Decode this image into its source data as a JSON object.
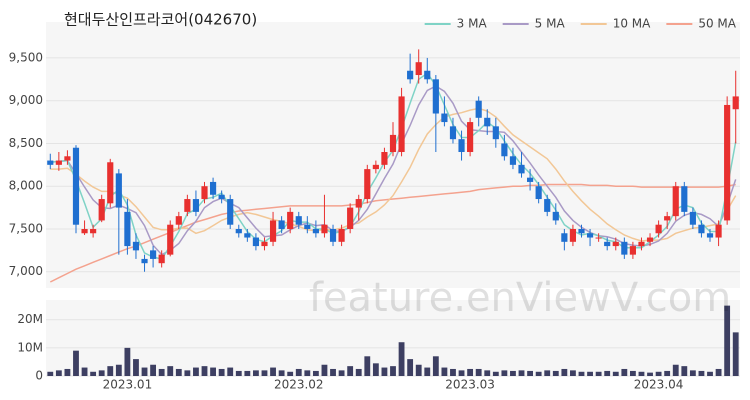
{
  "chart_data": [
    {
      "type": "candlestick",
      "title": "현대두산인프라코어(042670)",
      "watermark": "feature.enViewV.com",
      "open": [
        8300,
        8250,
        8300,
        8450,
        7450,
        7450,
        7600,
        7800,
        8150,
        7700,
        7350,
        7150,
        7250,
        7100,
        7200,
        7550,
        7700,
        7850,
        7850,
        8050,
        7900,
        7850,
        7500,
        7450,
        7400,
        7300,
        7350,
        7600,
        7500,
        7650,
        7550,
        7500,
        7450,
        7500,
        7350,
        7500,
        7750,
        7850,
        8200,
        8250,
        8400,
        8400,
        9350,
        9300,
        9350,
        9250,
        8850,
        8700,
        8550,
        8400,
        9000,
        8800,
        8700,
        8500,
        8350,
        8250,
        8100,
        8000,
        7850,
        7700,
        7450,
        7350,
        7500,
        7450,
        7400,
        7350,
        7300,
        7350,
        7200,
        7300,
        7350,
        7450,
        7600,
        7650,
        8000,
        7700,
        7550,
        7450,
        7400,
        7600,
        8900
      ],
      "high": [
        8380,
        8400,
        8420,
        8480,
        7600,
        7550,
        7900,
        8320,
        8200,
        7850,
        7450,
        7200,
        7300,
        7250,
        7600,
        7700,
        7900,
        7950,
        8050,
        8100,
        7950,
        7900,
        7550,
        7500,
        7450,
        7400,
        7700,
        7650,
        7750,
        7700,
        7650,
        7600,
        7900,
        7550,
        7550,
        7800,
        7900,
        8250,
        8300,
        8450,
        8750,
        9150,
        9550,
        9600,
        9500,
        9300,
        9050,
        8800,
        8650,
        8800,
        9050,
        8900,
        8800,
        8600,
        8450,
        8400,
        8200,
        8050,
        7900,
        7800,
        7500,
        7550,
        7550,
        7500,
        7450,
        7400,
        7400,
        7400,
        7350,
        7400,
        7450,
        7600,
        7700,
        8050,
        8050,
        7750,
        7600,
        7500,
        7600,
        9050,
        9350
      ],
      "low": [
        8200,
        8180,
        8250,
        7450,
        7430,
        7400,
        7580,
        7750,
        7200,
        7200,
        7150,
        7000,
        7050,
        7050,
        7180,
        7500,
        7650,
        7650,
        7800,
        7850,
        7800,
        7500,
        7400,
        7350,
        7250,
        7250,
        7300,
        7450,
        7450,
        7500,
        7450,
        7400,
        7400,
        7300,
        7300,
        7450,
        7600,
        7800,
        8150,
        8200,
        8350,
        8350,
        9200,
        9200,
        9200,
        8400,
        8700,
        8500,
        8300,
        8350,
        8700,
        8600,
        8450,
        8300,
        8200,
        8100,
        7950,
        7800,
        7650,
        7550,
        7250,
        7300,
        7400,
        7300,
        7350,
        7250,
        7250,
        7150,
        7150,
        7250,
        7300,
        7400,
        7500,
        7600,
        7650,
        7500,
        7400,
        7350,
        7300,
        7550,
        8500
      ],
      "close": [
        8250,
        8300,
        8350,
        7550,
        7500,
        7500,
        7850,
        8280,
        7750,
        7300,
        7250,
        7100,
        7150,
        7200,
        7550,
        7650,
        7850,
        7700,
        8000,
        7900,
        7850,
        7550,
        7450,
        7400,
        7300,
        7350,
        7600,
        7500,
        7700,
        7550,
        7500,
        7450,
        7550,
        7350,
        7500,
        7750,
        7850,
        8200,
        8250,
        8400,
        8600,
        9050,
        9250,
        9450,
        9250,
        8850,
        8750,
        8550,
        8400,
        8750,
        8800,
        8700,
        8550,
        8350,
        8250,
        8150,
        8050,
        7850,
        7700,
        7600,
        7350,
        7500,
        7450,
        7400,
        7400,
        7300,
        7350,
        7200,
        7300,
        7350,
        7400,
        7550,
        7650,
        8000,
        7700,
        7550,
        7450,
        7400,
        7550,
        8950,
        9050
      ],
      "up_color": "#e8302f",
      "down_color": "#1f6fd0",
      "lines": [
        {
          "name": "3 MA",
          "color": "#7fd3c6",
          "values": [
            8280,
            8290,
            8300,
            8070,
            7800,
            7520,
            7620,
            7880,
            7960,
            7780,
            7430,
            7220,
            7170,
            7150,
            7300,
            7470,
            7680,
            7730,
            7850,
            7870,
            7920,
            7770,
            7620,
            7470,
            7380,
            7350,
            7420,
            7480,
            7600,
            7580,
            7580,
            7500,
            7500,
            7450,
            7470,
            7530,
            7700,
            7930,
            8100,
            8280,
            8420,
            8680,
            8970,
            9250,
            9320,
            9180,
            8950,
            8720,
            8570,
            8570,
            8650,
            8750,
            8680,
            8530,
            8380,
            8250,
            8150,
            8020,
            7870,
            7720,
            7550,
            7480,
            7430,
            7450,
            7420,
            7370,
            7350,
            7280,
            7280,
            7280,
            7350,
            7430,
            7530,
            7730,
            7780,
            7750,
            7570,
            7470,
            7470,
            7970,
            8520
          ]
        },
        {
          "name": "5 MA",
          "color": "#a99ac6",
          "values": [
            8280,
            8290,
            8300,
            8150,
            7990,
            7840,
            7750,
            7740,
            7780,
            7740,
            7690,
            7540,
            7310,
            7200,
            7250,
            7330,
            7480,
            7590,
            7750,
            7820,
            7860,
            7800,
            7750,
            7630,
            7510,
            7410,
            7420,
            7430,
            7490,
            7540,
            7570,
            7540,
            7550,
            7480,
            7470,
            7520,
            7600,
            7730,
            7910,
            8090,
            8260,
            8500,
            8710,
            8950,
            9120,
            9170,
            9110,
            8970,
            8760,
            8660,
            8650,
            8640,
            8640,
            8630,
            8530,
            8400,
            8270,
            8130,
            8000,
            7870,
            7710,
            7600,
            7520,
            7460,
            7420,
            7410,
            7380,
            7330,
            7310,
            7300,
            7320,
            7360,
            7450,
            7590,
            7660,
            7690,
            7670,
            7620,
            7530,
            7780,
            8080
          ]
        },
        {
          "name": "10 MA",
          "color": "#f2c796",
          "values": [
            8200,
            8200,
            8210,
            8140,
            8060,
            7990,
            7940,
            7940,
            7900,
            7860,
            7760,
            7640,
            7520,
            7490,
            7490,
            7510,
            7510,
            7450,
            7480,
            7540,
            7600,
            7640,
            7670,
            7690,
            7670,
            7640,
            7610,
            7590,
            7560,
            7530,
            7490,
            7480,
            7490,
            7490,
            7510,
            7550,
            7570,
            7640,
            7700,
            7780,
            7890,
            8050,
            8220,
            8430,
            8610,
            8720,
            8810,
            8840,
            8860,
            8890,
            8910,
            8880,
            8810,
            8700,
            8600,
            8530,
            8460,
            8390,
            8320,
            8200,
            8060,
            7940,
            7830,
            7730,
            7650,
            7560,
            7490,
            7430,
            7390,
            7360,
            7370,
            7370,
            7390,
            7450,
            7480,
            7510,
            7520,
            7540,
            7560,
            7720,
            7890
          ]
        },
        {
          "name": "50 MA",
          "color": "#f4a28e",
          "values": [
            6880,
            6930,
            6980,
            7030,
            7070,
            7110,
            7150,
            7190,
            7230,
            7270,
            7300,
            7340,
            7380,
            7420,
            7460,
            7500,
            7540,
            7580,
            7610,
            7640,
            7670,
            7690,
            7710,
            7720,
            7730,
            7740,
            7750,
            7760,
            7770,
            7770,
            7770,
            7770,
            7770,
            7770,
            7770,
            7780,
            7790,
            7810,
            7830,
            7840,
            7850,
            7860,
            7870,
            7880,
            7890,
            7900,
            7910,
            7920,
            7930,
            7940,
            7960,
            7970,
            7980,
            7990,
            8000,
            8000,
            8010,
            8010,
            8020,
            8020,
            8020,
            8020,
            8020,
            8010,
            8010,
            8010,
            8000,
            8000,
            8000,
            7990,
            7990,
            7990,
            7990,
            7990,
            7990,
            7990,
            7990,
            7990,
            7990,
            8000,
            8020
          ]
        }
      ],
      "legend": "top-right",
      "grid": true,
      "ylim": [
        6810,
        9920
      ],
      "yticks": [
        {
          "value": 7000,
          "label": "7,000"
        },
        {
          "value": 7500,
          "label": "7,500"
        },
        {
          "value": 8000,
          "label": "8,000"
        },
        {
          "value": 8500,
          "label": "8,500"
        },
        {
          "value": 9000,
          "label": "9,000"
        },
        {
          "value": 9500,
          "label": "9,500"
        }
      ]
    },
    {
      "type": "bar",
      "color": "#3d3f62",
      "grid": true,
      "categories": [
        null,
        null,
        null,
        null,
        null,
        null,
        null,
        null,
        null,
        "2023.01",
        null,
        null,
        null,
        null,
        null,
        null,
        null,
        null,
        null,
        null,
        null,
        null,
        null,
        null,
        null,
        null,
        null,
        null,
        null,
        "2023.02",
        null,
        null,
        null,
        null,
        null,
        null,
        null,
        null,
        null,
        null,
        null,
        null,
        null,
        null,
        null,
        null,
        null,
        null,
        null,
        "2023.03",
        null,
        null,
        null,
        null,
        null,
        null,
        null,
        null,
        null,
        null,
        null,
        null,
        null,
        null,
        null,
        null,
        null,
        null,
        null,
        null,
        null,
        "2023.04",
        null,
        null,
        null,
        null,
        null,
        null,
        null,
        null,
        null
      ],
      "values": [
        1500000,
        2000000,
        2500000,
        9000000,
        3000000,
        1500000,
        2000000,
        3500000,
        4000000,
        10000000,
        6000000,
        3000000,
        4000000,
        2500000,
        3500000,
        2500000,
        2000000,
        3000000,
        3500000,
        3000000,
        2500000,
        3000000,
        1800000,
        1800000,
        2000000,
        2000000,
        3000000,
        2000000,
        1500000,
        2500000,
        2000000,
        1800000,
        4000000,
        2500000,
        2000000,
        3500000,
        2500000,
        7000000,
        4500000,
        3000000,
        3500000,
        12000000,
        6000000,
        4000000,
        3000000,
        7000000,
        3000000,
        2500000,
        2000000,
        2500000,
        2500000,
        2000000,
        1500000,
        2000000,
        1800000,
        2000000,
        1800000,
        1500000,
        2000000,
        1800000,
        2500000,
        2000000,
        1500000,
        1500000,
        1500000,
        1800000,
        1500000,
        2500000,
        1800000,
        1500000,
        1200000,
        1500000,
        1800000,
        4000000,
        3500000,
        2000000,
        1800000,
        1500000,
        2500000,
        25000000,
        15500000
      ],
      "ylim": [
        0,
        27000000
      ],
      "yticks": [
        0,
        {
          "value": 10000000,
          "label": "10M"
        },
        {
          "value": 20000000,
          "label": "20M"
        }
      ]
    }
  ]
}
